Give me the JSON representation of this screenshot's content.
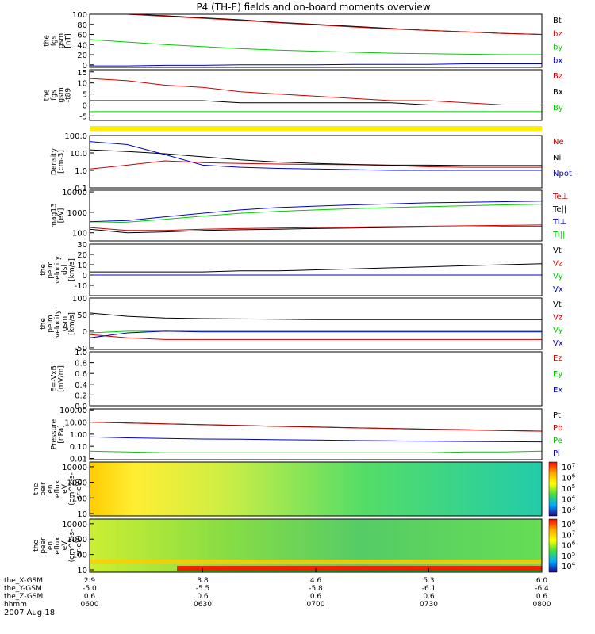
{
  "title": "P4 (TH-E) fields and on-board moments overview",
  "colors": {
    "black": "#000000",
    "red": "#cc0000",
    "green": "#00cc00",
    "blue": "#0000cc",
    "yellow": "#ffee00"
  },
  "chart_data": [
    {
      "type": "line",
      "ylabel": [
        "the",
        "fgs",
        "gsm",
        "[nT]"
      ],
      "ylim": [
        -5,
        100
      ],
      "yticks": [
        "100",
        "80",
        "60",
        "40",
        "20",
        "0"
      ],
      "ytick_values": [
        100,
        80,
        60,
        40,
        20,
        0
      ],
      "series": [
        {
          "name": "Bt",
          "color": "#000000",
          "values": [
            100,
            100,
            97,
            93,
            89,
            84,
            80,
            76,
            72,
            68,
            65,
            62,
            60
          ]
        },
        {
          "name": "bz",
          "color": "#cc0000",
          "values": [
            100,
            100,
            96,
            92,
            88,
            83,
            79,
            75,
            71,
            68,
            65,
            62,
            60
          ]
        },
        {
          "name": "by",
          "color": "#00cc00",
          "values": [
            50,
            45,
            40,
            36,
            32,
            29,
            27,
            25,
            23,
            22,
            21,
            20,
            20
          ]
        },
        {
          "name": "bx",
          "color": "#0000cc",
          "values": [
            -2,
            -2,
            -1,
            -1,
            0,
            0,
            0,
            1,
            1,
            1,
            2,
            2,
            2
          ]
        }
      ]
    },
    {
      "type": "line",
      "ylabel": [
        "the",
        "fgs",
        "gsm",
        "-t89"
      ],
      "ylim": [
        -7,
        16
      ],
      "yticks": [
        "15",
        "10",
        "5",
        "0",
        "-5"
      ],
      "ytick_values": [
        15,
        10,
        5,
        0,
        -5
      ],
      "series": [
        {
          "name": "Bz",
          "color": "#cc0000",
          "values": [
            12,
            11,
            9,
            8,
            6,
            5,
            4,
            3,
            2,
            2,
            1,
            0,
            0
          ]
        },
        {
          "name": "Bx",
          "color": "#000000",
          "values": [
            2,
            2,
            2,
            2,
            1,
            1,
            1,
            1,
            1,
            0,
            0,
            0,
            0
          ]
        },
        {
          "name": "By",
          "color": "#00cc00",
          "values": [
            -3,
            -3,
            -3,
            -3,
            -3,
            -3,
            -3,
            -3,
            -3,
            -3,
            -3,
            -3,
            -3
          ]
        }
      ]
    },
    {
      "type": "line",
      "scale": "log",
      "ylabel": [
        "Density",
        "[cm-3]"
      ],
      "ylim": [
        0.1,
        100
      ],
      "yticks": [
        "100.0",
        "10.0",
        "1.0",
        "0.1"
      ],
      "ytick_values": [
        100,
        10,
        1,
        0.1
      ],
      "series": [
        {
          "name": "Ne",
          "color": "#cc0000",
          "values": [
            1.2,
            2.0,
            3.5,
            2.8,
            2.5,
            2.3,
            2.2,
            2.1,
            1.9,
            1.6,
            1.5,
            1.5,
            1.5
          ]
        },
        {
          "name": "Ni",
          "color": "#000000",
          "values": [
            15,
            12,
            9,
            6,
            4,
            3,
            2.5,
            2.2,
            2,
            2,
            1.9,
            1.9,
            1.9
          ]
        },
        {
          "name": "Npot",
          "color": "#0000cc",
          "values": [
            45,
            30,
            8,
            2,
            1.5,
            1.3,
            1.2,
            1.1,
            1.0,
            1.0,
            1.0,
            1.0,
            1.0
          ]
        }
      ]
    },
    {
      "type": "line",
      "scale": "log",
      "ylabel": [
        "mag13",
        "[eV]"
      ],
      "ylim": [
        40,
        12000
      ],
      "yticks": [
        "10000",
        "1000",
        "100"
      ],
      "ytick_values": [
        10000,
        1000,
        100
      ],
      "series": [
        {
          "name": "Te⊥",
          "color": "#cc0000",
          "values": [
            180,
            130,
            130,
            150,
            160,
            170,
            180,
            190,
            200,
            210,
            220,
            230,
            240
          ]
        },
        {
          "name": "Te||",
          "color": "#000000",
          "values": [
            150,
            100,
            110,
            130,
            140,
            150,
            160,
            170,
            180,
            190,
            190,
            200,
            200
          ]
        },
        {
          "name": "Ti⊥",
          "color": "#0000cc",
          "values": [
            350,
            400,
            600,
            900,
            1300,
            1700,
            2000,
            2300,
            2600,
            2900,
            3100,
            3300,
            3500
          ]
        },
        {
          "name": "Ti||",
          "color": "#00cc00",
          "values": [
            300,
            330,
            450,
            650,
            900,
            1100,
            1300,
            1500,
            1700,
            1900,
            2100,
            2300,
            2500
          ]
        }
      ]
    },
    {
      "type": "line",
      "ylabel": [
        "the",
        "peim",
        "velocity",
        "dsl",
        "[km/s]"
      ],
      "ylim": [
        -20,
        30
      ],
      "yticks": [
        "30",
        "20",
        "10",
        "0",
        "-10"
      ],
      "ytick_values": [
        30,
        20,
        10,
        0,
        -10
      ],
      "series": [
        {
          "name": "Vt",
          "color": "#000000",
          "values": [
            3,
            3,
            3,
            3,
            4,
            4,
            5,
            6,
            7,
            8,
            9,
            10,
            11
          ]
        },
        {
          "name": "Vz",
          "color": "#cc0000",
          "values": [
            0,
            0,
            0,
            0,
            0,
            0,
            0,
            0,
            0,
            0,
            0,
            0,
            0
          ]
        },
        {
          "name": "Vy",
          "color": "#00cc00",
          "values": [
            0,
            0,
            0,
            0,
            0,
            0,
            0,
            0,
            0,
            0,
            0,
            0,
            0
          ]
        },
        {
          "name": "Vx",
          "color": "#0000cc",
          "values": [
            0,
            0,
            0,
            0,
            0,
            0,
            0,
            0,
            0,
            0,
            0,
            0,
            0
          ]
        }
      ]
    },
    {
      "type": "line",
      "ylabel": [
        "the",
        "peim",
        "velocity",
        "gsm",
        "[km/s]"
      ],
      "ylim": [
        -55,
        100
      ],
      "yticks": [
        "100",
        "50",
        "0",
        "-50"
      ],
      "ytick_values": [
        100,
        50,
        0,
        -50
      ],
      "series": [
        {
          "name": "Vt",
          "color": "#000000",
          "values": [
            55,
            45,
            40,
            38,
            37,
            36,
            35,
            35,
            35,
            35,
            35,
            35,
            35
          ]
        },
        {
          "name": "Vz",
          "color": "#cc0000",
          "values": [
            -10,
            -20,
            -25,
            -25,
            -25,
            -25,
            -25,
            -25,
            -25,
            -25,
            -25,
            -25,
            -25
          ]
        },
        {
          "name": "Vy",
          "color": "#00cc00",
          "values": [
            -5,
            0,
            0,
            0,
            0,
            0,
            0,
            0,
            0,
            0,
            0,
            0,
            0
          ]
        },
        {
          "name": "Vx",
          "color": "#0000cc",
          "values": [
            -20,
            -5,
            0,
            -2,
            -2,
            -2,
            -2,
            -2,
            -2,
            -2,
            -2,
            -2,
            -2
          ]
        }
      ]
    },
    {
      "type": "line",
      "ylabel": [
        "E=-VxB",
        "[mV/m]"
      ],
      "ylim": [
        0,
        1
      ],
      "yticks": [
        "1.0",
        "0.8",
        "0.6",
        "0.4",
        "0.2",
        "0.0"
      ],
      "ytick_values": [
        1,
        0.8,
        0.6,
        0.4,
        0.2,
        0
      ],
      "series": [
        {
          "name": "Ez",
          "color": "#cc0000",
          "values": []
        },
        {
          "name": "Ey",
          "color": "#00cc00",
          "values": []
        },
        {
          "name": "Ex",
          "color": "#0000cc",
          "values": []
        }
      ]
    },
    {
      "type": "line",
      "scale": "log",
      "ylabel": [
        "Pressure",
        "[nPa]"
      ],
      "ylim": [
        0.008,
        120
      ],
      "yticks": [
        "100.00",
        "10.00",
        "1.00",
        "0.10",
        "0.01"
      ],
      "ytick_values": [
        100,
        10,
        1,
        0.1,
        0.01
      ],
      "series": [
        {
          "name": "Pt",
          "color": "#000000",
          "values": [
            10,
            8.5,
            7.2,
            6.2,
            5.3,
            4.5,
            3.9,
            3.4,
            3,
            2.6,
            2.3,
            2,
            1.8
          ]
        },
        {
          "name": "Pb",
          "color": "#cc0000",
          "values": [
            9.8,
            8.3,
            7,
            6,
            5.1,
            4.4,
            3.8,
            3.3,
            2.9,
            2.5,
            2.2,
            1.95,
            1.75
          ]
        },
        {
          "name": "Pe",
          "color": "#00cc00",
          "values": [
            0.04,
            0.035,
            0.03,
            0.03,
            0.03,
            0.03,
            0.03,
            0.03,
            0.03,
            0.03,
            0.035,
            0.035,
            0.04
          ]
        },
        {
          "name": "Pi",
          "color": "#0000cc",
          "values": [
            0.6,
            0.5,
            0.45,
            0.4,
            0.38,
            0.35,
            0.33,
            0.3,
            0.28,
            0.26,
            0.25,
            0.24,
            0.23
          ]
        }
      ]
    },
    {
      "type": "heatmap",
      "ylabel": [
        "the",
        "peir",
        "en",
        "eflux",
        "eV",
        "(cm^2-s-",
        "sr-eV)"
      ],
      "yticks": [
        "10000",
        "1000",
        "100",
        "10"
      ],
      "ytick_values": [
        10000,
        1000,
        100,
        10
      ],
      "colorbar": [
        "10^7",
        "10^6",
        "10^5",
        "10^4",
        "10^3"
      ]
    },
    {
      "type": "heatmap",
      "ylabel": [
        "the",
        "peer",
        "en",
        "eflux",
        "eV",
        "(cm^2-s-",
        "sr-eV)"
      ],
      "yticks": [
        "10000",
        "1000",
        "100",
        "10"
      ],
      "ytick_values": [
        10000,
        1000,
        100,
        10
      ],
      "colorbar": [
        "10^8",
        "10^7",
        "10^6",
        "10^5",
        "10^4"
      ]
    }
  ],
  "xaxis": {
    "rows": [
      {
        "label": "the_X-GSM",
        "values": [
          "2.9",
          "3.8",
          "4.6",
          "5.3",
          "6.0"
        ]
      },
      {
        "label": "the_Y-GSM",
        "values": [
          "-5.0",
          "-5.5",
          "-5.8",
          "-6.1",
          "-6.4"
        ]
      },
      {
        "label": "the_Z-GSM",
        "values": [
          "0.6",
          "0.6",
          "0.6",
          "0.6",
          "0.6"
        ]
      },
      {
        "label": "hhmm",
        "values": [
          "0600",
          "0630",
          "0700",
          "0730",
          "0800"
        ]
      }
    ],
    "date": "2007 Aug 18"
  }
}
